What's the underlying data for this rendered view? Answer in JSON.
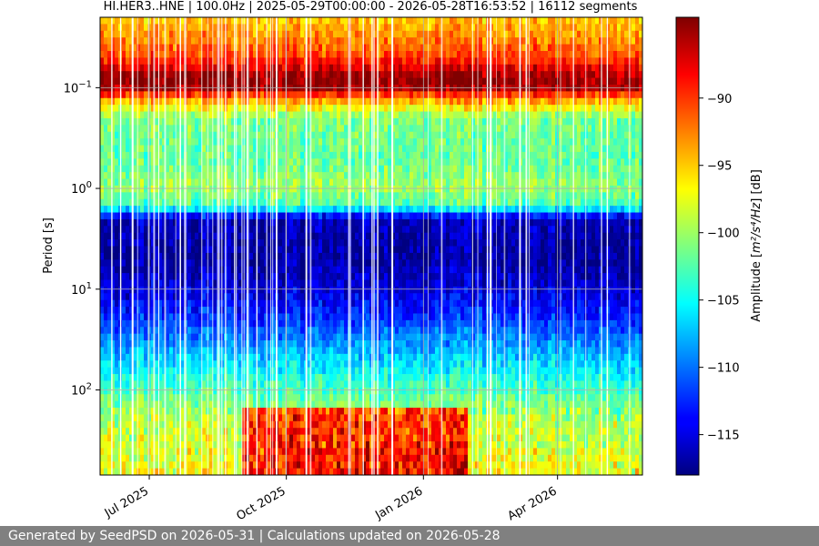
{
  "chart_data": {
    "type": "heatmap",
    "title": "HI.HER3..HNE | 100.0Hz | 2025-05-29T00:00:00 - 2026-05-28T16:53:52 | 16112 segments",
    "xlabel": "",
    "ylabel": "Period [s]",
    "y_scale": "log",
    "y_inverted": true,
    "x_range": [
      "2025-05-29",
      "2026-05-28"
    ],
    "y_range_period_s": [
      0.02,
      700
    ],
    "x_ticks": [
      {
        "label": "Jul 2025",
        "date": "2025-07-01"
      },
      {
        "label": "Oct 2025",
        "date": "2025-10-01"
      },
      {
        "label": "Jan 2026",
        "date": "2026-01-01"
      },
      {
        "label": "Apr 2026",
        "date": "2026-04-01"
      }
    ],
    "y_ticks": [
      {
        "base": "10",
        "exp": "−1",
        "value": 0.1
      },
      {
        "base": "10",
        "exp": "0",
        "value": 1
      },
      {
        "base": "10",
        "exp": "1",
        "value": 10
      },
      {
        "base": "10",
        "exp": "2",
        "value": 100
      }
    ],
    "grid": true,
    "colormap": "jet",
    "colorbar": {
      "label_prefix": "Amplitude [",
      "label_math": "m²/s⁴/Hz",
      "label_suffix": "] [dB]",
      "range": [
        -118,
        -84
      ],
      "ticks": [
        {
          "value": -90,
          "label": "−90"
        },
        {
          "value": -95,
          "label": "−95"
        },
        {
          "value": -100,
          "label": "−100"
        },
        {
          "value": -105,
          "label": "−105"
        },
        {
          "value": -110,
          "label": "−110"
        },
        {
          "value": -115,
          "label": "−115"
        }
      ]
    },
    "period_profile_db": [
      {
        "period": 0.02,
        "db": -95
      },
      {
        "period": 0.03,
        "db": -93
      },
      {
        "period": 0.045,
        "db": -91
      },
      {
        "period": 0.06,
        "db": -88
      },
      {
        "period": 0.08,
        "db": -84
      },
      {
        "period": 0.1,
        "db": -85
      },
      {
        "period": 0.13,
        "db": -93
      },
      {
        "period": 0.2,
        "db": -101
      },
      {
        "period": 0.5,
        "db": -102
      },
      {
        "period": 1.0,
        "db": -100
      },
      {
        "period": 1.5,
        "db": -103
      },
      {
        "period": 2.0,
        "db": -116
      },
      {
        "period": 5.0,
        "db": -117
      },
      {
        "period": 10.0,
        "db": -115
      },
      {
        "period": 20.0,
        "db": -112
      },
      {
        "period": 40.0,
        "db": -108
      },
      {
        "period": 80.0,
        "db": -104
      },
      {
        "period": 200.0,
        "db": -99
      },
      {
        "period": 700.0,
        "db": -97
      }
    ],
    "long_period_high_noise_interval": [
      "2025-09-01",
      "2026-01-31"
    ]
  },
  "footer": {
    "text": "Generated by SeedPSD on 2026-05-31 | Calculations updated on 2026-05-28"
  }
}
